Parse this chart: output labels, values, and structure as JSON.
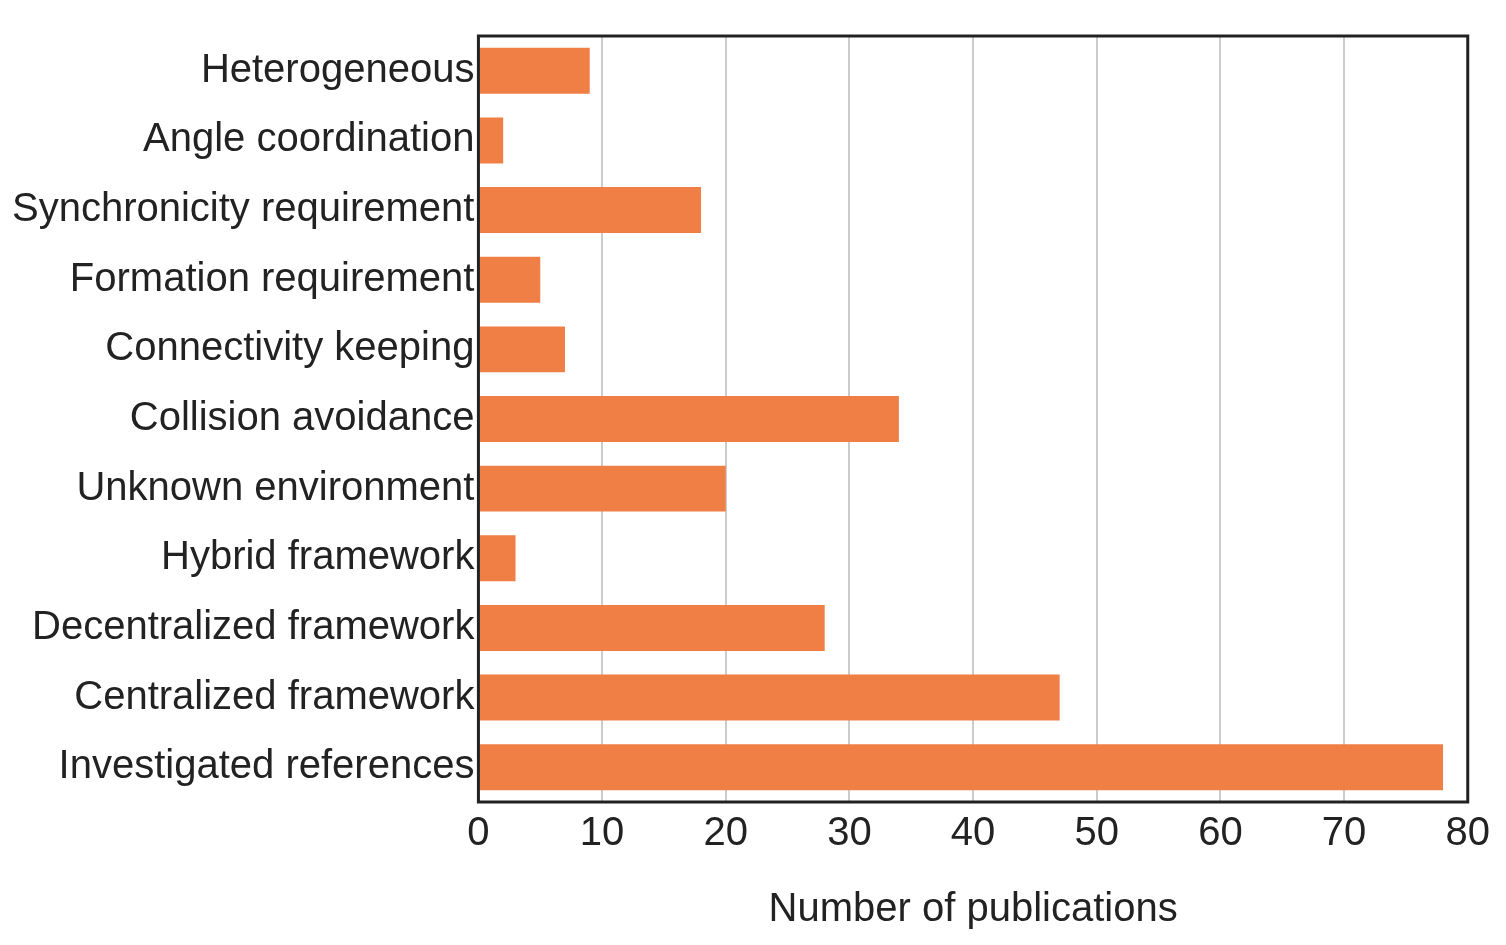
{
  "chart_data": {
    "type": "bar",
    "orientation": "horizontal",
    "xlabel": "Number of publications",
    "categories": [
      "Heterogeneous",
      "Angle coordination",
      "Synchronicity requirement",
      "Formation requirement",
      "Connectivity keeping",
      "Collision avoidance",
      "Unknown environment",
      "Hybrid framework",
      "Decentralized framework",
      "Centralized framework",
      "Investigated references"
    ],
    "values": [
      9,
      2,
      18,
      5,
      7,
      34,
      20,
      3,
      28,
      47,
      78
    ],
    "color": "#ef7f45",
    "xlim": [
      0,
      80
    ],
    "xticks": [
      0,
      10,
      20,
      30,
      40,
      50,
      60,
      70,
      80
    ],
    "grid": "x",
    "legend": false
  }
}
